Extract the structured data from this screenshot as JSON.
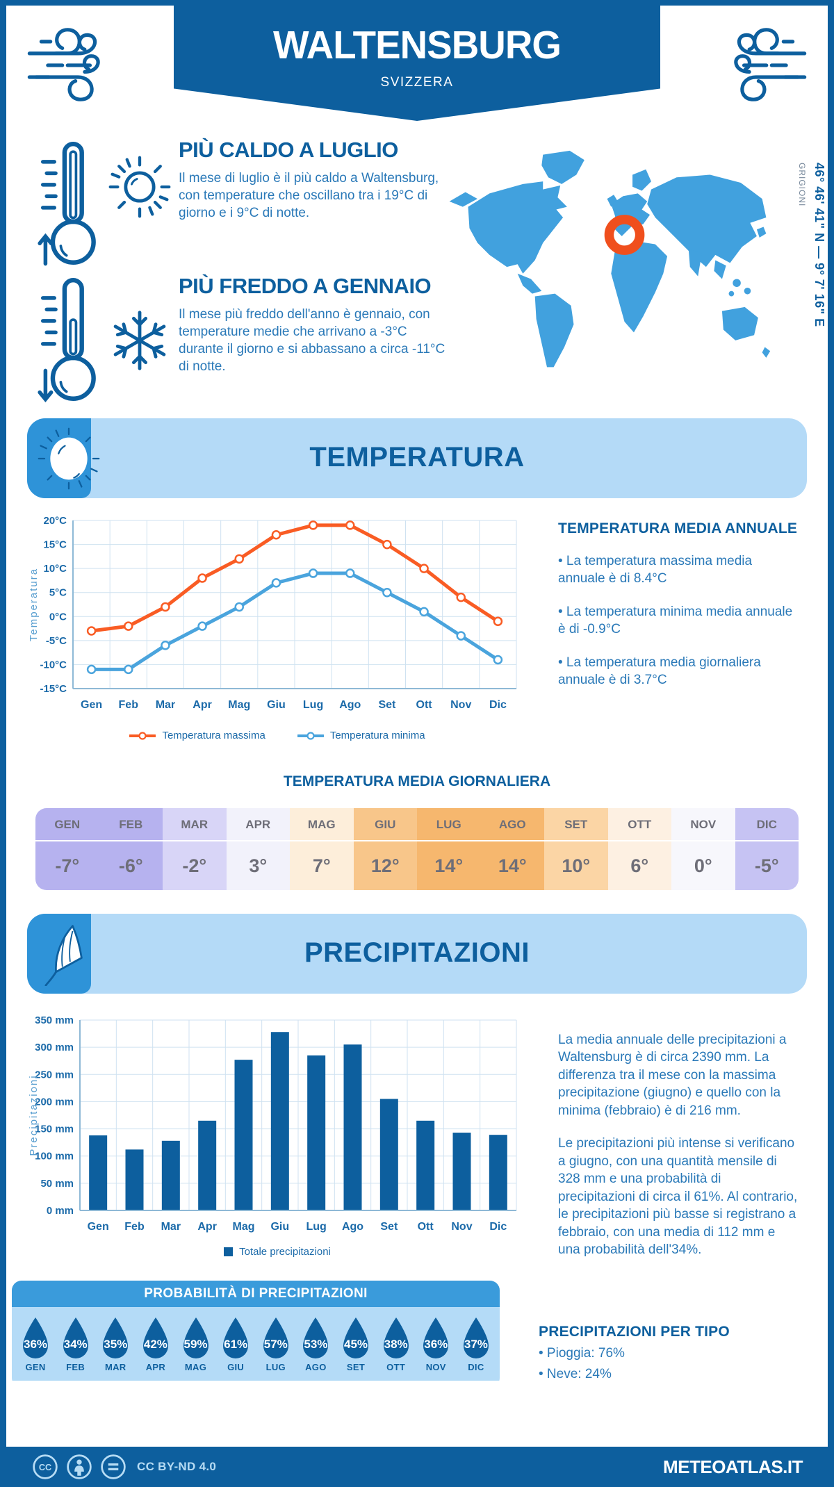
{
  "header": {
    "title": "WALTENSBURG",
    "subtitle": "SVIZZERA"
  },
  "location": {
    "region": "GRIGIONI",
    "coordinates": "46° 46' 41\" N — 9° 7' 16\" E"
  },
  "highlights": {
    "warm": {
      "title": "PIÙ CALDO A LUGLIO",
      "text": "Il mese di luglio è il più caldo a Waltensburg, con temperature che oscillano tra i 19°C di giorno e i 9°C di notte."
    },
    "cold": {
      "title": "PIÙ FREDDO A GENNAIO",
      "text": "Il mese più freddo dell'anno è gennaio, con temperature medie che arrivano a -3°C durante il giorno e si abbassano a circa -11°C di notte."
    }
  },
  "temperature_section": {
    "banner_title": "TEMPERATURA",
    "annual_title": "TEMPERATURA MEDIA ANNUALE",
    "annual_bullets": [
      "• La temperatura massima media annuale è di 8.4°C",
      "• La temperatura minima media annuale è di -0.9°C",
      "• La temperatura media giornaliera annuale è di 3.7°C"
    ],
    "daily_title": "TEMPERATURA MEDIA GIORNALIERA"
  },
  "chart_data": [
    {
      "type": "line",
      "title": "",
      "categories": [
        "Gen",
        "Feb",
        "Mar",
        "Apr",
        "Mag",
        "Giu",
        "Lug",
        "Ago",
        "Set",
        "Ott",
        "Nov",
        "Dic"
      ],
      "series": [
        {
          "name": "Temperatura massima",
          "color": "#f95c24",
          "values": [
            -3,
            -2,
            2,
            8,
            12,
            17,
            19,
            19,
            15,
            10,
            4,
            -1
          ]
        },
        {
          "name": "Temperatura minima",
          "color": "#4aa4dd",
          "values": [
            -11,
            -11,
            -6,
            -2,
            2,
            7,
            9,
            9,
            5,
            1,
            -4,
            -9
          ]
        }
      ],
      "xlabel": "",
      "ylabel": "Temperatura",
      "ylim": [
        -15,
        20
      ],
      "ytick_step": 5,
      "ytick_suffix": "°C",
      "grid": true,
      "legend_position": "bottom"
    },
    {
      "type": "bar",
      "title": "",
      "categories": [
        "Gen",
        "Feb",
        "Mar",
        "Apr",
        "Mag",
        "Giu",
        "Lug",
        "Ago",
        "Set",
        "Ott",
        "Nov",
        "Dic"
      ],
      "values": [
        138,
        112,
        128,
        165,
        277,
        328,
        285,
        305,
        205,
        165,
        143,
        139
      ],
      "bar_color": "#0d5f9e",
      "legend": "Totale precipitazioni",
      "xlabel": "",
      "ylabel": "Precipitazioni",
      "ylim": [
        0,
        350
      ],
      "ytick_step": 50,
      "ytick_suffix": " mm",
      "grid": true
    }
  ],
  "daily_table": {
    "months": [
      {
        "label": "GEN",
        "value": "-7°",
        "color": "#b6b2ef"
      },
      {
        "label": "FEB",
        "value": "-6°",
        "color": "#b6b2ef"
      },
      {
        "label": "MAR",
        "value": "-2°",
        "color": "#d8d5f7"
      },
      {
        "label": "APR",
        "value": "3°",
        "color": "#f2f2fb"
      },
      {
        "label": "MAG",
        "value": "7°",
        "color": "#fdeeda"
      },
      {
        "label": "GIU",
        "value": "12°",
        "color": "#f8c68a"
      },
      {
        "label": "LUG",
        "value": "14°",
        "color": "#f6b76e"
      },
      {
        "label": "AGO",
        "value": "14°",
        "color": "#f6b76e"
      },
      {
        "label": "SET",
        "value": "10°",
        "color": "#fbd5a5"
      },
      {
        "label": "OTT",
        "value": "6°",
        "color": "#fdf0e2"
      },
      {
        "label": "NOV",
        "value": "0°",
        "color": "#f7f7fc"
      },
      {
        "label": "DIC",
        "value": "-5°",
        "color": "#c6c3f3"
      }
    ]
  },
  "precipitation_section": {
    "banner_title": "PRECIPITAZIONI",
    "paragraphs": [
      "La media annuale delle precipitazioni a Waltensburg è di circa 2390 mm. La differenza tra il mese con la massima precipitazione (giugno) e quello con la minima (febbraio) è di 216 mm.",
      "Le precipitazioni più intense si verificano a giugno, con una quantità mensile di 328 mm e una probabilità di precipitazioni di circa il 61%. Al contrario, le precipitazioni più basse si registrano a febbraio, con una media di 112 mm e una probabilità dell'34%."
    ],
    "probability_title": "PROBABILITÀ DI PRECIPITAZIONI",
    "probability": [
      {
        "month": "GEN",
        "value": "36%"
      },
      {
        "month": "FEB",
        "value": "34%"
      },
      {
        "month": "MAR",
        "value": "35%"
      },
      {
        "month": "APR",
        "value": "42%"
      },
      {
        "month": "MAG",
        "value": "59%"
      },
      {
        "month": "GIU",
        "value": "61%"
      },
      {
        "month": "LUG",
        "value": "57%"
      },
      {
        "month": "AGO",
        "value": "53%"
      },
      {
        "month": "SET",
        "value": "45%"
      },
      {
        "month": "OTT",
        "value": "38%"
      },
      {
        "month": "NOV",
        "value": "36%"
      },
      {
        "month": "DIC",
        "value": "37%"
      }
    ],
    "per_tipo_title": "PRECIPITAZIONI PER TIPO",
    "per_tipo": [
      "• Pioggia: 76%",
      "• Neve: 24%"
    ]
  },
  "footer": {
    "license": "CC BY-ND 4.0",
    "site": "METEOATLAS.IT"
  },
  "colors": {
    "primary_dark_blue": "#0d5f9e",
    "accent_medium_blue": "#2e93d8",
    "banner_light_blue": "#b4daf7",
    "map_blue": "#41a1de",
    "marker_orange": "#f04f1d",
    "line_max": "#f95c24",
    "line_min": "#4aa4dd",
    "bar_blue": "#0d5f9e",
    "body_text_blue": "#2a79b8",
    "grid_blue": "#cfe2f1",
    "table_text_gray": "#6e6e78"
  }
}
